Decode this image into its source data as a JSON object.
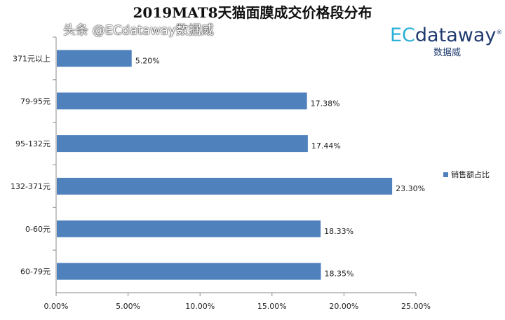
{
  "chart_data": {
    "type": "bar",
    "orientation": "horizontal",
    "title": "2019MAT8天猫面膜成交价格段分布",
    "categories": [
      "371元以上",
      "79-95元",
      "95-132元",
      "132-371元",
      "0-60元",
      "60-79元"
    ],
    "series": [
      {
        "name": "销售额占比",
        "values": [
          5.2,
          17.38,
          17.44,
          23.3,
          18.33,
          18.35
        ],
        "color": "#4f81bd"
      }
    ],
    "data_labels": [
      "5.20%",
      "17.38%",
      "17.44%",
      "23.30%",
      "18.33%",
      "18.35%"
    ],
    "xlim": [
      0,
      25
    ],
    "xticks": [
      "0.00%",
      "5.00%",
      "10.00%",
      "15.00%",
      "20.00%",
      "25.00%"
    ],
    "grid": false,
    "legend_position": "right"
  },
  "logo": {
    "brand_prefix": "EC",
    "brand_rest": "dataway",
    "registered": "®",
    "cn": "数据威"
  },
  "watermark": "头条 @ECdataway数据威"
}
